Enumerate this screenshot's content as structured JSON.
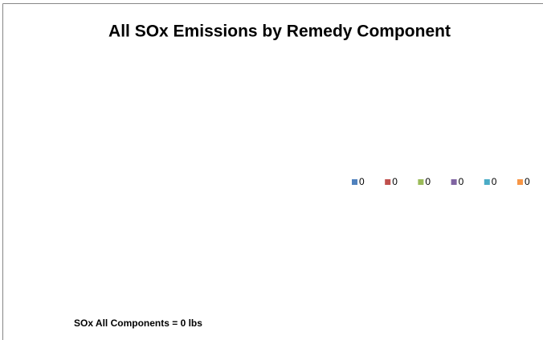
{
  "chart_data": {
    "type": "pie",
    "title": "All SOx Emissions by Remedy Component",
    "categories": [
      "0",
      "0",
      "0",
      "0",
      "0",
      "0"
    ],
    "values": [
      0,
      0,
      0,
      0,
      0,
      0
    ],
    "colors": [
      "#4f81bd",
      "#c0504d",
      "#9bbb59",
      "#8064a2",
      "#4bacc6",
      "#f79646"
    ],
    "legend": "right",
    "annotation": "SOx All Components = 0 lbs"
  }
}
